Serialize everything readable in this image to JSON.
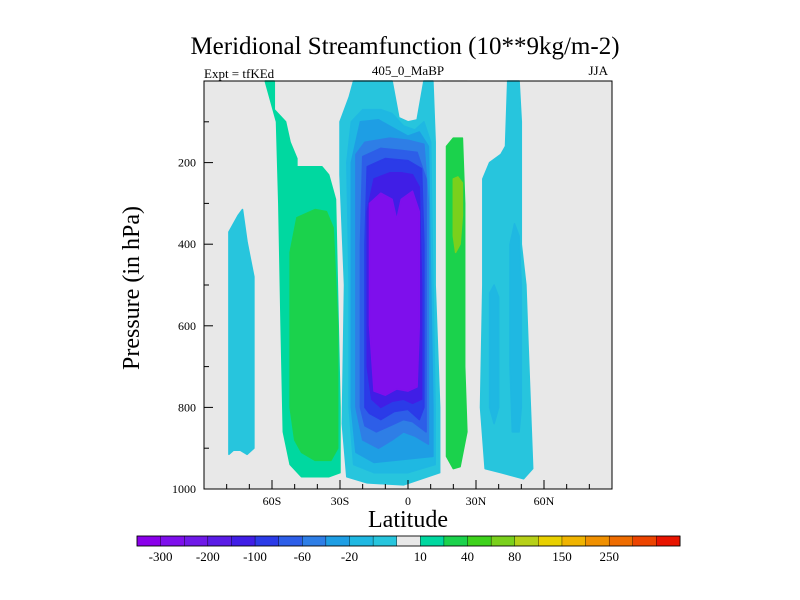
{
  "chart_data": {
    "type": "heatmap",
    "title": "Meridional Streamfunction (10**9kg/m-2)",
    "left_label": "Expt = tfKEd",
    "center_label": "405_0_MaBP",
    "right_label": "JJA",
    "xlabel": "Latitude",
    "ylabel": "Pressure (in hPa)",
    "xlim": [
      -90,
      90
    ],
    "ylim": [
      1000,
      0
    ],
    "x_ticks": [
      {
        "value": -60,
        "label": "60S"
      },
      {
        "value": -30,
        "label": "30S"
      },
      {
        "value": 0,
        "label": "0"
      },
      {
        "value": 30,
        "label": "30N"
      },
      {
        "value": 60,
        "label": "60N"
      }
    ],
    "y_ticks": [
      {
        "value": 200,
        "label": "200"
      },
      {
        "value": 400,
        "label": "400"
      },
      {
        "value": 600,
        "label": "600"
      },
      {
        "value": 800,
        "label": "800"
      },
      {
        "value": 1000,
        "label": "1000"
      }
    ],
    "colorbar": {
      "colors": [
        "#8a00ea",
        "#7e0fec",
        "#6f19e8",
        "#5a1ce6",
        "#401ee6",
        "#2b3be8",
        "#2d5ee8",
        "#2e7ee6",
        "#1e9ee4",
        "#1fb8e2",
        "#27c5dd",
        "#e8e8e8",
        "#00d8a0",
        "#1bd24c",
        "#3ed21c",
        "#7ad01c",
        "#b6d018",
        "#e8d000",
        "#f0b400",
        "#f09000",
        "#ee6c00",
        "#ec4400",
        "#e81400"
      ],
      "labels": [
        "-300",
        "-200",
        "-100",
        "-60",
        "-20",
        "10",
        "40",
        "80",
        "150",
        "250"
      ]
    },
    "features": [
      {
        "kind": "south-polar-positive-cell",
        "latitude_range": [
          -79,
          -68
        ],
        "pressure_range": [
          320,
          915
        ],
        "max_value": "-20 to 10"
      },
      {
        "kind": "southern-ferrel-positive-cell",
        "latitude_range": [
          -57,
          -30
        ],
        "pressure_range": [
          0,
          975
        ],
        "max_value": "40 to 80"
      },
      {
        "kind": "winter-hadley-cell-negative",
        "latitude_range": [
          -29,
          12
        ],
        "pressure_range": [
          0,
          990
        ],
        "min_value": "below -300"
      },
      {
        "kind": "northern-positive-cell",
        "latitude_range": [
          16,
          27
        ],
        "pressure_range": [
          0,
          980
        ],
        "max_value": "80 to 150"
      },
      {
        "kind": "northern-midlatitude-positive-cell",
        "latitude_range": [
          32,
          55
        ],
        "pressure_range": [
          0,
          975
        ],
        "max_value": "-20 to 10"
      }
    ]
  }
}
